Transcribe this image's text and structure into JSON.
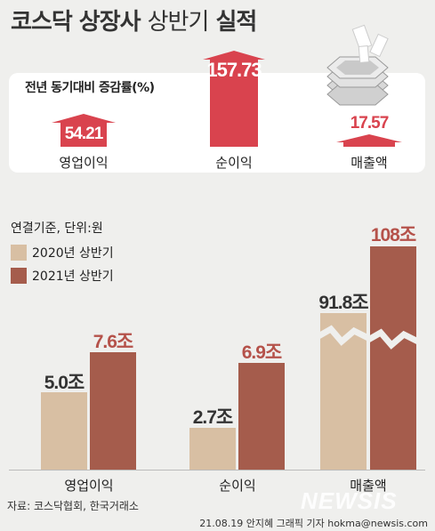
{
  "title_bold_1": "코스닥 상장사",
  "title_light": "상반기",
  "title_bold_2": "실적",
  "top": {
    "label": "전년 동기대비 증감률(%)",
    "items": [
      {
        "category": "영업이익",
        "value": "54.21"
      },
      {
        "category": "순이익",
        "value": "157.73"
      },
      {
        "category": "매출액",
        "value": "17.57"
      }
    ]
  },
  "legend": {
    "basis": "연결기준, 단위:원",
    "items": [
      "2020년 상반기",
      "2021년 상반기"
    ]
  },
  "colors": {
    "red": "#d9434e",
    "y2020": "#d8bfa3",
    "y2021": "#a55c4c",
    "red_label": "#b5524a"
  },
  "chart_data": {
    "type": "bar",
    "categories": [
      "영업이익",
      "순이익",
      "매출액"
    ],
    "series": [
      {
        "name": "2020년 상반기",
        "values": [
          5.0,
          2.7,
          91.8
        ],
        "labels": [
          "5.0조",
          "2.7조",
          "91.8조"
        ]
      },
      {
        "name": "2021년 상반기",
        "values": [
          7.6,
          6.9,
          108
        ],
        "labels": [
          "7.6조",
          "6.9조",
          "108조"
        ]
      }
    ],
    "ylabel": "",
    "note": "매출액 축 생략(broken axis)"
  },
  "source": "자료: 코스닥협회, 한국거래소",
  "credit": "21.08.19 안지혜 그래픽 기자 hokma@newsis.com",
  "watermark": "NEWSIS"
}
